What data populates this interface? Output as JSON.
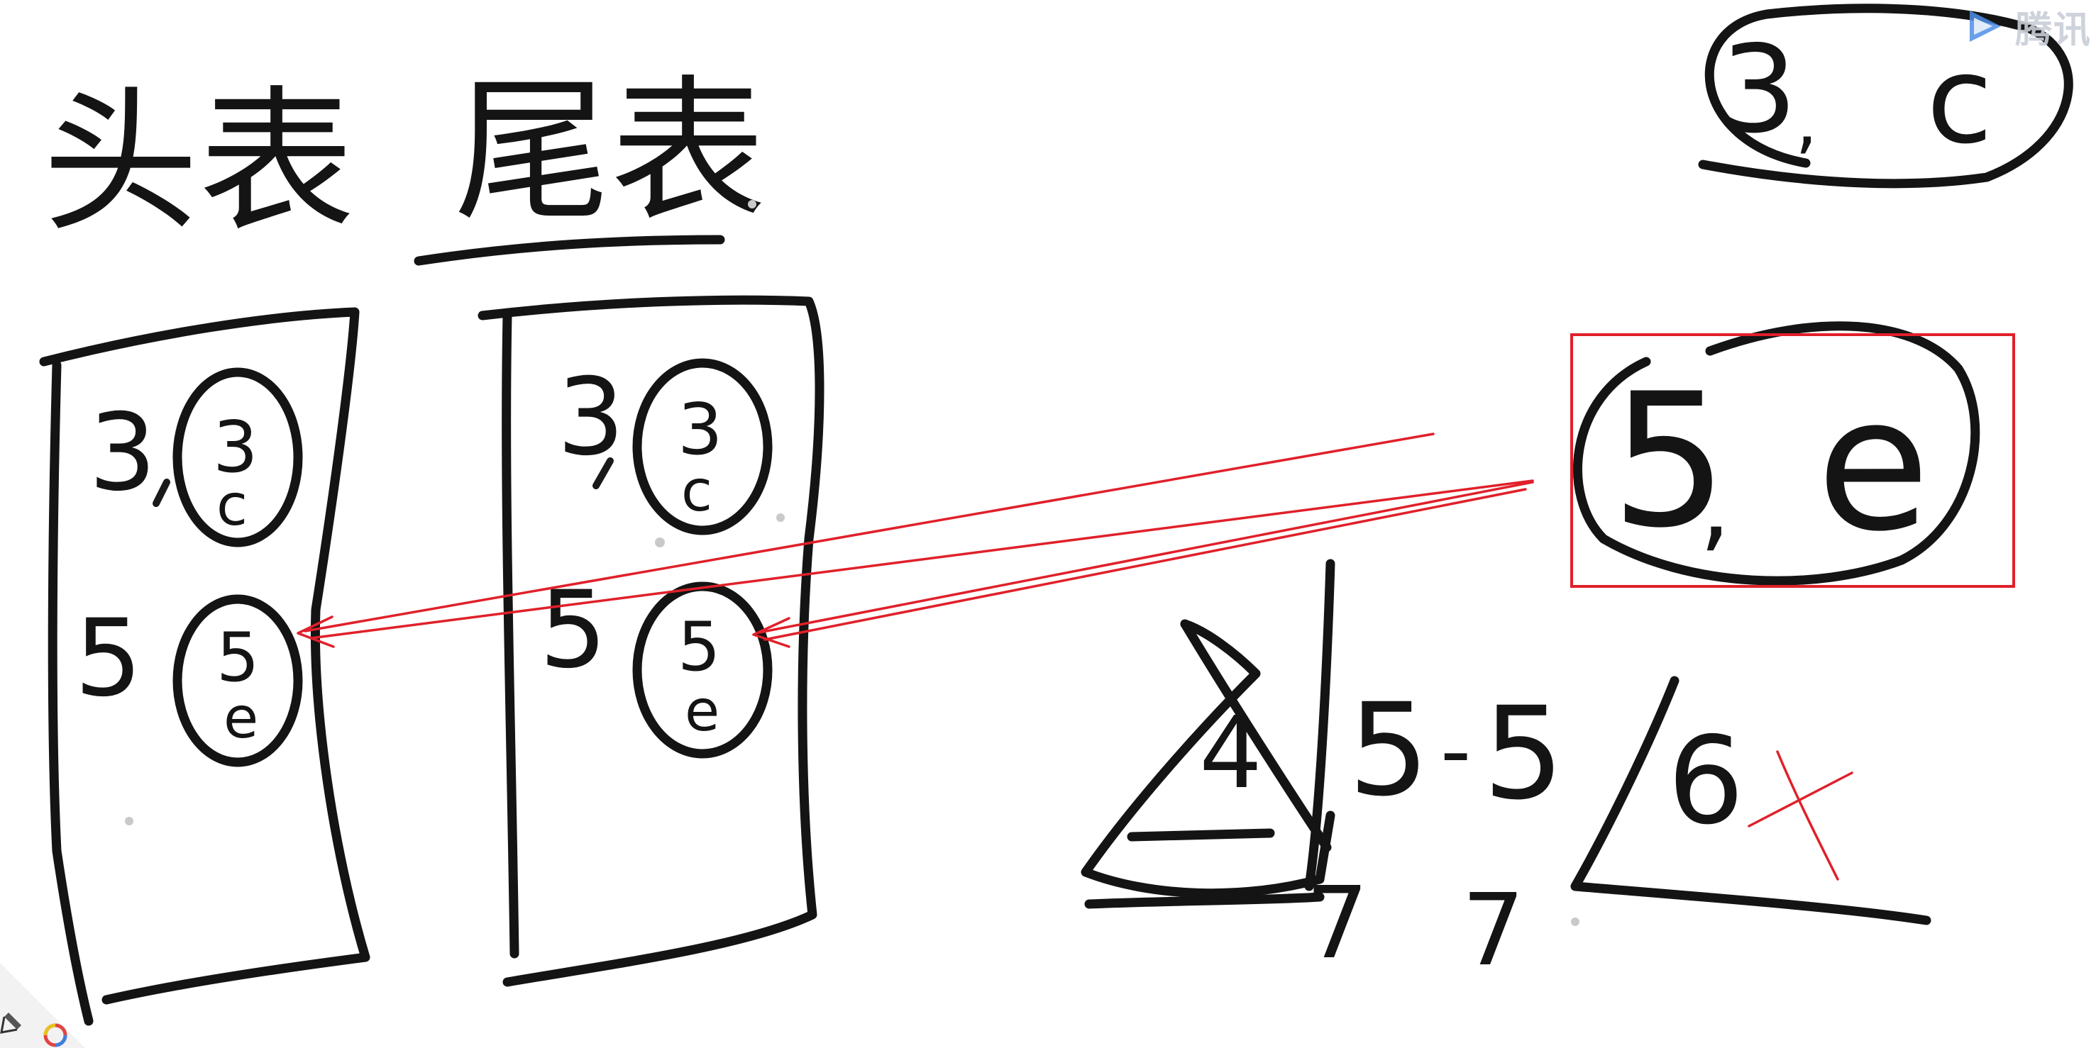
{
  "board": {
    "titles": {
      "head_table": "头表",
      "tail_table": "尾表"
    },
    "head_table_cells": {
      "row1_key": "3",
      "row1_node_top": "3",
      "row1_node_bottom": "c",
      "row2_key": "5",
      "row2_node_top": "5",
      "row2_node_bottom": "e"
    },
    "tail_table_cells": {
      "row1_key": "3",
      "row1_node_top": "3",
      "row1_node_bottom": "c",
      "row2_key": "5",
      "row2_node_top": "5",
      "row2_node_bottom": "e"
    },
    "top_right_node": {
      "left": "3",
      "sep": ",",
      "right": "c"
    },
    "highlighted_node": {
      "left": "5",
      "sep": ",",
      "right": "e"
    },
    "bottom_sketch": {
      "digit_4": "4",
      "digit_5a": "5",
      "dash": "-",
      "digit_5b": "5",
      "digit_6": "6",
      "digit_7a": "7",
      "digit_7b": "7"
    },
    "colors": {
      "ink": "#141414",
      "annotation": "#e0202a"
    }
  },
  "logo": {
    "text": "腾讯",
    "icon": "play-icon"
  },
  "toolbar": {
    "pen_icon": "pen-icon",
    "color_icon": "color-wheel-icon"
  }
}
